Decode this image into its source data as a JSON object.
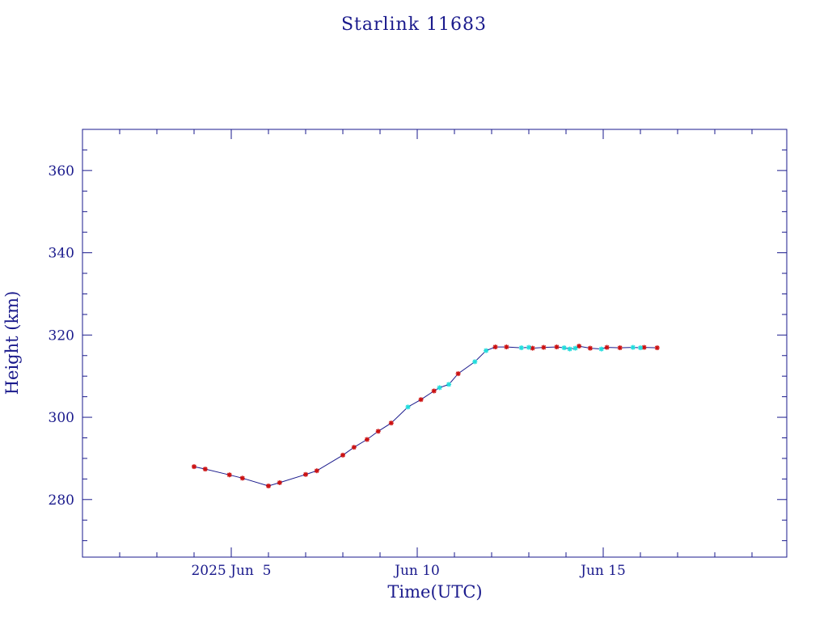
{
  "chart_data": {
    "type": "line",
    "title": "Starlink 11683",
    "xlabel": "Time(UTC)",
    "ylabel": "Height (km)",
    "x_tick_labels": [
      {
        "day": 5,
        "label": "2025 Jun  5"
      },
      {
        "day": 10,
        "label": "Jun 10"
      },
      {
        "day": 15,
        "label": "Jun 15"
      }
    ],
    "y_tick_labels": [
      {
        "value": 280,
        "label": "280"
      },
      {
        "value": 300,
        "label": "300"
      },
      {
        "value": 320,
        "label": "320"
      },
      {
        "value": 340,
        "label": "340"
      },
      {
        "value": 360,
        "label": "360"
      }
    ],
    "xlim": [
      1,
      20
    ],
    "ylim": [
      266,
      370
    ],
    "grid": false,
    "colors": {
      "axes": "#1a1a8c",
      "line": "#1a1a8c",
      "marker_primary": "#cc1111",
      "marker_secondary": "#22dddd"
    },
    "series": [
      {
        "marker": "primary",
        "points": [
          {
            "day": 4.0,
            "height": 288.0
          },
          {
            "day": 4.3,
            "height": 287.4
          },
          {
            "day": 4.95,
            "height": 286.0
          },
          {
            "day": 5.3,
            "height": 285.2
          },
          {
            "day": 6.0,
            "height": 283.3
          },
          {
            "day": 6.3,
            "height": 284.1
          },
          {
            "day": 7.0,
            "height": 286.1
          },
          {
            "day": 7.3,
            "height": 287.0
          },
          {
            "day": 8.0,
            "height": 290.8
          },
          {
            "day": 8.3,
            "height": 292.7
          },
          {
            "day": 8.65,
            "height": 294.6
          },
          {
            "day": 8.95,
            "height": 296.6
          },
          {
            "day": 9.3,
            "height": 298.6
          },
          {
            "day": 10.1,
            "height": 304.3
          },
          {
            "day": 10.45,
            "height": 306.4
          },
          {
            "day": 11.1,
            "height": 310.6
          },
          {
            "day": 12.1,
            "height": 317.1
          },
          {
            "day": 12.4,
            "height": 317.1
          },
          {
            "day": 13.1,
            "height": 316.8
          },
          {
            "day": 13.4,
            "height": 317.0
          },
          {
            "day": 13.75,
            "height": 317.1
          },
          {
            "day": 14.35,
            "height": 317.3
          },
          {
            "day": 14.65,
            "height": 316.8
          },
          {
            "day": 15.1,
            "height": 317.0
          },
          {
            "day": 15.45,
            "height": 316.9
          },
          {
            "day": 16.1,
            "height": 317.0
          },
          {
            "day": 16.45,
            "height": 316.9
          }
        ]
      },
      {
        "marker": "secondary",
        "points": [
          {
            "day": 9.75,
            "height": 302.5
          },
          {
            "day": 10.6,
            "height": 307.2
          },
          {
            "day": 10.85,
            "height": 308.0
          },
          {
            "day": 11.55,
            "height": 313.5
          },
          {
            "day": 11.85,
            "height": 316.2
          },
          {
            "day": 12.8,
            "height": 316.9
          },
          {
            "day": 13.0,
            "height": 317.0
          },
          {
            "day": 13.95,
            "height": 316.9
          },
          {
            "day": 14.1,
            "height": 316.6
          },
          {
            "day": 14.25,
            "height": 316.8
          },
          {
            "day": 14.95,
            "height": 316.6
          },
          {
            "day": 15.8,
            "height": 317.0
          },
          {
            "day": 16.0,
            "height": 316.9
          }
        ]
      }
    ]
  }
}
